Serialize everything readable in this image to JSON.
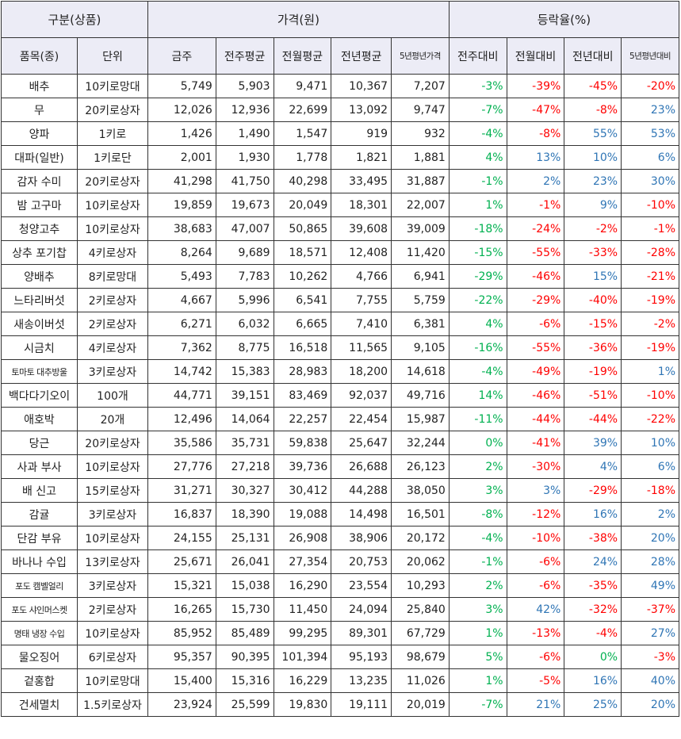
{
  "header": {
    "group1": "구분(상품)",
    "group2": "가격(원)",
    "group3": "등락율(%)",
    "cols": [
      "품목(종)",
      "단위",
      "금주",
      "전주평균",
      "전월평균",
      "전년평균",
      "5년평년가격",
      "전주대비",
      "전월대비",
      "전년대비",
      "5년평년대비"
    ]
  },
  "colors": {
    "up": "#2f75b5",
    "down_red": "#ff0000",
    "green": "#00b050",
    "header_bg": "#ececf6"
  },
  "rows": [
    {
      "item": "배추",
      "unit": "10키로망대",
      "w": "5,749",
      "pw": "5,903",
      "pm": "9,471",
      "py": "10,367",
      "p5": "7,207",
      "c1": "-3%",
      "c2": "-39%",
      "c3": "-45%",
      "c4": "-20%"
    },
    {
      "item": "무",
      "unit": "20키로상자",
      "w": "12,026",
      "pw": "12,936",
      "pm": "22,699",
      "py": "13,092",
      "p5": "9,747",
      "c1": "-7%",
      "c2": "-47%",
      "c3": "-8%",
      "c4": "23%"
    },
    {
      "item": "양파",
      "unit": "1키로",
      "w": "1,426",
      "pw": "1,490",
      "pm": "1,547",
      "py": "919",
      "p5": "932",
      "c1": "-4%",
      "c2": "-8%",
      "c3": "55%",
      "c4": "53%"
    },
    {
      "item": "대파(일반)",
      "unit": "1키로단",
      "w": "2,001",
      "pw": "1,930",
      "pm": "1,778",
      "py": "1,821",
      "p5": "1,881",
      "c1": "4%",
      "c2": "13%",
      "c3": "10%",
      "c4": "6%"
    },
    {
      "item": "감자 수미",
      "unit": "20키로상자",
      "w": "41,298",
      "pw": "41,750",
      "pm": "40,298",
      "py": "33,495",
      "p5": "31,887",
      "c1": "-1%",
      "c2": "2%",
      "c3": "23%",
      "c4": "30%"
    },
    {
      "item": "밤 고구마",
      "unit": "10키로상자",
      "w": "19,859",
      "pw": "19,673",
      "pm": "20,049",
      "py": "18,301",
      "p5": "22,007",
      "c1": "1%",
      "c2": "-1%",
      "c3": "9%",
      "c4": "-10%"
    },
    {
      "item": "청양고추",
      "unit": "10키로상자",
      "w": "38,683",
      "pw": "47,007",
      "pm": "50,865",
      "py": "39,608",
      "p5": "39,009",
      "c1": "-18%",
      "c2": "-24%",
      "c3": "-2%",
      "c4": "-1%"
    },
    {
      "item": "상추 포기찹",
      "unit": "4키로상자",
      "w": "8,264",
      "pw": "9,689",
      "pm": "18,571",
      "py": "12,408",
      "p5": "11,420",
      "c1": "-15%",
      "c2": "-55%",
      "c3": "-33%",
      "c4": "-28%"
    },
    {
      "item": "양배추",
      "unit": "8키로망대",
      "w": "5,493",
      "pw": "7,783",
      "pm": "10,262",
      "py": "4,766",
      "p5": "6,941",
      "c1": "-29%",
      "c2": "-46%",
      "c3": "15%",
      "c4": "-21%"
    },
    {
      "item": "느타리버섯",
      "unit": "2키로상자",
      "w": "4,667",
      "pw": "5,996",
      "pm": "6,541",
      "py": "7,755",
      "p5": "5,759",
      "c1": "-22%",
      "c2": "-29%",
      "c3": "-40%",
      "c4": "-19%"
    },
    {
      "item": "새송이버섯",
      "unit": "2키로상자",
      "w": "6,271",
      "pw": "6,032",
      "pm": "6,665",
      "py": "7,410",
      "p5": "6,381",
      "c1": "4%",
      "c2": "-6%",
      "c3": "-15%",
      "c4": "-2%"
    },
    {
      "item": "시금치",
      "unit": "4키로상자",
      "w": "7,362",
      "pw": "8,775",
      "pm": "16,518",
      "py": "11,565",
      "p5": "9,105",
      "c1": "-16%",
      "c2": "-55%",
      "c3": "-36%",
      "c4": "-19%"
    },
    {
      "item": "토마토 대추방울",
      "unit": "3키로상자",
      "w": "14,742",
      "pw": "15,383",
      "pm": "28,983",
      "py": "18,200",
      "p5": "14,618",
      "c1": "-4%",
      "c2": "-49%",
      "c3": "-19%",
      "c4": "1%"
    },
    {
      "item": "백다다기오이",
      "unit": "100개",
      "w": "44,771",
      "pw": "39,151",
      "pm": "83,469",
      "py": "92,037",
      "p5": "49,716",
      "c1": "14%",
      "c2": "-46%",
      "c3": "-51%",
      "c4": "-10%"
    },
    {
      "item": "애호박",
      "unit": "20개",
      "w": "12,496",
      "pw": "14,064",
      "pm": "22,257",
      "py": "22,454",
      "p5": "15,987",
      "c1": "-11%",
      "c2": "-44%",
      "c3": "-44%",
      "c4": "-22%"
    },
    {
      "item": "당근",
      "unit": "20키로상자",
      "w": "35,586",
      "pw": "35,731",
      "pm": "59,838",
      "py": "25,647",
      "p5": "32,244",
      "c1": "0%",
      "c2": "-41%",
      "c3": "39%",
      "c4": "10%"
    },
    {
      "item": "사과 부사",
      "unit": "10키로상자",
      "w": "27,776",
      "pw": "27,218",
      "pm": "39,736",
      "py": "26,688",
      "p5": "26,123",
      "c1": "2%",
      "c2": "-30%",
      "c3": "4%",
      "c4": "6%"
    },
    {
      "item": "배 신고",
      "unit": "15키로상자",
      "w": "31,271",
      "pw": "30,327",
      "pm": "30,412",
      "py": "44,288",
      "p5": "38,050",
      "c1": "3%",
      "c2": "3%",
      "c3": "-29%",
      "c4": "-18%"
    },
    {
      "item": "감귤",
      "unit": "3키로상자",
      "w": "16,837",
      "pw": "18,390",
      "pm": "19,088",
      "py": "14,498",
      "p5": "16,501",
      "c1": "-8%",
      "c2": "-12%",
      "c3": "16%",
      "c4": "2%"
    },
    {
      "item": "단감 부유",
      "unit": "10키로상자",
      "w": "24,155",
      "pw": "25,131",
      "pm": "26,908",
      "py": "38,906",
      "p5": "20,172",
      "c1": "-4%",
      "c2": "-10%",
      "c3": "-38%",
      "c4": "20%"
    },
    {
      "item": "바나나 수입",
      "unit": "13키로상자",
      "w": "25,671",
      "pw": "26,041",
      "pm": "27,354",
      "py": "20,753",
      "p5": "20,062",
      "c1": "-1%",
      "c2": "-6%",
      "c3": "24%",
      "c4": "28%"
    },
    {
      "item": "포도 캠벨얼리",
      "unit": "3키로상자",
      "w": "15,321",
      "pw": "15,038",
      "pm": "16,290",
      "py": "23,554",
      "p5": "10,293",
      "c1": "2%",
      "c2": "-6%",
      "c3": "-35%",
      "c4": "49%"
    },
    {
      "item": "포도 샤인머스켓",
      "unit": "2키로상자",
      "w": "16,265",
      "pw": "15,730",
      "pm": "11,450",
      "py": "24,094",
      "p5": "25,840",
      "c1": "3%",
      "c2": "42%",
      "c3": "-32%",
      "c4": "-37%"
    },
    {
      "item": "명태 냉장 수입",
      "unit": "10키로상자",
      "w": "85,952",
      "pw": "85,489",
      "pm": "99,295",
      "py": "89,301",
      "p5": "67,729",
      "c1": "1%",
      "c2": "-13%",
      "c3": "-4%",
      "c4": "27%"
    },
    {
      "item": "물오징어",
      "unit": "6키로상자",
      "w": "95,357",
      "pw": "90,395",
      "pm": "101,394",
      "py": "95,193",
      "p5": "98,679",
      "c1": "5%",
      "c2": "-6%",
      "c3": "0%",
      "c4": "-3%"
    },
    {
      "item": "겉홍합",
      "unit": "10키로망대",
      "w": "15,400",
      "pw": "15,316",
      "pm": "16,229",
      "py": "13,235",
      "p5": "11,026",
      "c1": "1%",
      "c2": "-5%",
      "c3": "16%",
      "c4": "40%"
    },
    {
      "item": "건세멸치",
      "unit": "1.5키로상자",
      "w": "23,924",
      "pw": "25,599",
      "pm": "19,830",
      "py": "19,111",
      "p5": "20,019",
      "c1": "-7%",
      "c2": "21%",
      "c3": "25%",
      "c4": "20%"
    }
  ]
}
